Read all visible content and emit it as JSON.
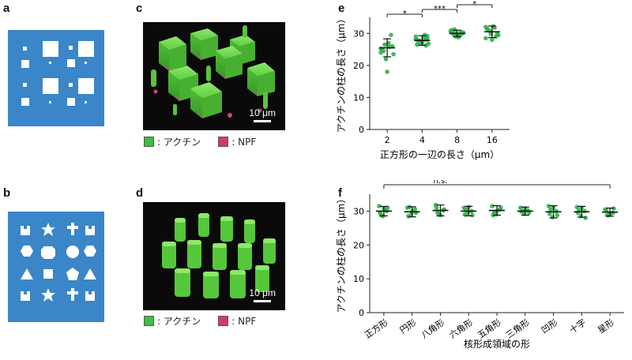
{
  "panels": {
    "a": "a",
    "b": "b",
    "c": "c",
    "d": "d",
    "e": "e",
    "f": "f"
  },
  "colors": {
    "pattern_blue": "#3a86c8",
    "actin_green": "#3fbf3a",
    "npf_magenta": "#d6357e",
    "point_green": "#2db34a"
  },
  "micrographs": {
    "c": {
      "scale_label": "10 μm"
    },
    "d": {
      "scale_label": "10 μm"
    }
  },
  "legend": {
    "actin": ": アクチン",
    "npf": ": NPF"
  },
  "chart_data": [
    {
      "type": "scatter",
      "panel": "e",
      "xlabel": "正方形の一辺の長さ（μm）",
      "ylabel": "アクチンの柱の長さ（μm）",
      "categories": [
        "2",
        "4",
        "8",
        "16"
      ],
      "ylim": [
        0,
        35
      ],
      "yticks": [
        0,
        10,
        20,
        30
      ],
      "means": [
        25.5,
        27.8,
        30.0,
        30.5
      ],
      "sd": [
        2.8,
        1.5,
        1.0,
        1.8
      ],
      "points": [
        [
          25.2,
          22.0,
          29.5,
          25.0,
          18.0,
          26.0,
          24.5,
          27.0,
          23.5,
          26.5,
          25.8,
          24.0
        ],
        [
          29.0,
          27.5,
          28.0,
          26.5,
          27.0,
          28.5,
          27.8,
          28.8,
          26.8,
          27.2,
          29.5,
          28.2,
          27.6,
          26.2,
          28.0,
          27.4,
          29.2
        ],
        [
          30.8,
          29.0,
          30.5,
          31.0,
          29.5,
          30.0,
          29.8,
          28.8,
          30.2,
          31.2,
          29.2,
          30.6,
          30.0
        ],
        [
          32.0,
          30.5,
          29.0,
          31.5,
          28.0,
          30.0,
          31.0,
          32.2,
          29.5,
          30.8,
          31.8,
          28.5,
          29.8
        ]
      ],
      "significance": [
        {
          "from": 0,
          "to": 1,
          "label": "*"
        },
        {
          "from": 1,
          "to": 2,
          "label": "***"
        },
        {
          "from": 2,
          "to": 3,
          "label": "*"
        }
      ]
    },
    {
      "type": "scatter",
      "panel": "f",
      "xlabel": "核形成領域の形",
      "ylabel": "アクチンの柱の長さ（μm）",
      "categories": [
        "正方形",
        "円形",
        "八角形",
        "六角形",
        "五角形",
        "三角形",
        "凹形",
        "十字",
        "星形"
      ],
      "ylim": [
        0,
        35
      ],
      "yticks": [
        0,
        10,
        20,
        30
      ],
      "means": [
        30.0,
        29.8,
        30.2,
        30.0,
        30.2,
        30.0,
        29.8,
        29.8,
        29.7
      ],
      "sd": [
        1.4,
        1.5,
        1.6,
        1.4,
        1.4,
        1.2,
        1.8,
        1.6,
        1.2
      ],
      "points": [
        [
          31.5,
          28.5,
          30.0,
          29.5,
          30.8,
          31.0,
          28.8
        ],
        [
          31.0,
          29.0,
          30.5,
          28.5,
          30.0,
          29.5,
          31.2
        ],
        [
          31.8,
          29.0,
          30.2,
          31.0,
          28.8,
          30.5,
          29.5
        ],
        [
          31.0,
          29.5,
          30.0,
          29.0,
          31.2,
          28.8,
          30.5
        ],
        [
          31.5,
          29.0,
          30.5,
          28.8,
          30.0,
          31.0,
          29.5
        ],
        [
          31.0,
          29.2,
          30.2,
          29.8,
          30.8,
          29.5,
          30.0
        ],
        [
          31.5,
          28.2,
          30.0,
          29.2,
          31.0,
          28.8,
          30.5
        ],
        [
          31.2,
          28.5,
          30.0,
          29.5,
          31.0,
          28.0,
          30.2
        ],
        [
          30.5,
          28.8,
          29.5,
          30.2,
          29.0,
          30.8,
          28.8
        ]
      ],
      "bracket_label": "n.s."
    }
  ]
}
